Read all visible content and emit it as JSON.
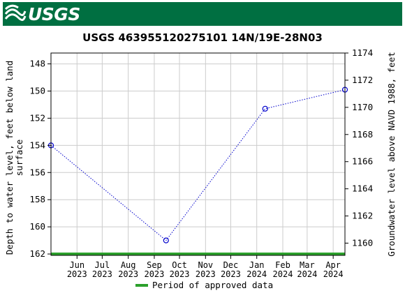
{
  "header": {
    "logo_text": "USGS",
    "bar_color": "#006f41"
  },
  "chart_data": {
    "type": "line",
    "title": "USGS 463955120275101 14N/19E-28N03",
    "ylabel_left": "Depth to water level, feet below land surface",
    "ylabel_left_lines": [
      "Depth to water level, feet below land",
      "surface"
    ],
    "ylabel_right": "Groundwater level above NAVD 1988, feet",
    "x_start": "2023-05-01",
    "x_end": "2024-04-15",
    "xticks": [
      {
        "date": "2023-06-01",
        "month": "Jun",
        "year": "2023"
      },
      {
        "date": "2023-07-01",
        "month": "Jul",
        "year": "2023"
      },
      {
        "date": "2023-08-01",
        "month": "Aug",
        "year": "2023"
      },
      {
        "date": "2023-09-01",
        "month": "Sep",
        "year": "2023"
      },
      {
        "date": "2023-10-01",
        "month": "Oct",
        "year": "2023"
      },
      {
        "date": "2023-11-01",
        "month": "Nov",
        "year": "2023"
      },
      {
        "date": "2023-12-01",
        "month": "Dec",
        "year": "2023"
      },
      {
        "date": "2024-01-01",
        "month": "Jan",
        "year": "2024"
      },
      {
        "date": "2024-02-01",
        "month": "Feb",
        "year": "2024"
      },
      {
        "date": "2024-03-01",
        "month": "Mar",
        "year": "2024"
      },
      {
        "date": "2024-04-01",
        "month": "Apr",
        "year": "2024"
      }
    ],
    "ylim_left": [
      162.1,
      147.2
    ],
    "yticks_left": [
      148,
      150,
      152,
      154,
      156,
      158,
      160,
      162
    ],
    "ylim_right": [
      1159.1,
      1174.0
    ],
    "yticks_right": [
      1160,
      1162,
      1164,
      1166,
      1168,
      1170,
      1172,
      1174
    ],
    "series": [
      {
        "color": "#0000cc",
        "points": [
          {
            "x": "2023-05-01",
            "y": 154.0
          },
          {
            "x": "2023-09-15",
            "y": 161.0
          },
          {
            "x": "2024-01-11",
            "y": 151.3
          },
          {
            "x": "2024-04-15",
            "y": 149.9
          }
        ]
      }
    ],
    "approval_bar": {
      "from": "2023-05-01",
      "to": "2024-04-15",
      "y": 162.0,
      "color": "#2ca02c"
    },
    "legend": {
      "label": "Period of approved data",
      "color": "#2ca02c",
      "position": "bottom-center"
    },
    "grid": true,
    "grid_color": "#cccccc"
  }
}
